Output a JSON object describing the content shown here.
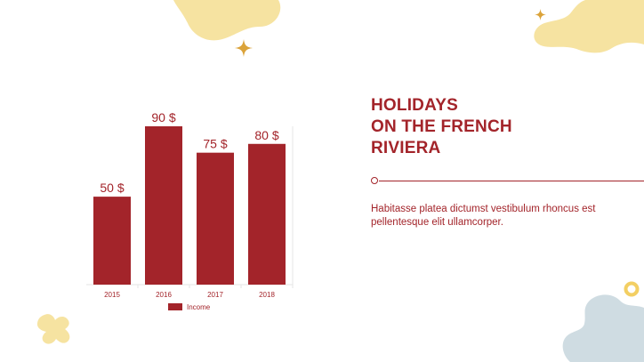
{
  "colors": {
    "accent": "#a3242a",
    "blob_yellow": "#f6e3a1",
    "blob_blue": "#cfdce2",
    "sparkle": "#dba33a",
    "grid": "#e6e6e6"
  },
  "slide": {
    "title_lines": [
      "HOLIDAYS",
      "ON THE FRENCH",
      "RIVIERA"
    ],
    "body": "Habitasse platea dictumst vestibulum rhoncus est pellentesque elit ullamcorper."
  },
  "chart_data": {
    "type": "bar",
    "categories": [
      "2015",
      "2016",
      "2017",
      "2018"
    ],
    "series": [
      {
        "name": "Income",
        "values": [
          50,
          90,
          75,
          80
        ]
      }
    ],
    "data_labels": [
      "50 $",
      "90 $",
      "75 $",
      "80 $"
    ],
    "ylim": [
      0,
      90
    ],
    "grid": false,
    "legend": "bottom",
    "title": "",
    "xlabel": "",
    "ylabel": ""
  }
}
